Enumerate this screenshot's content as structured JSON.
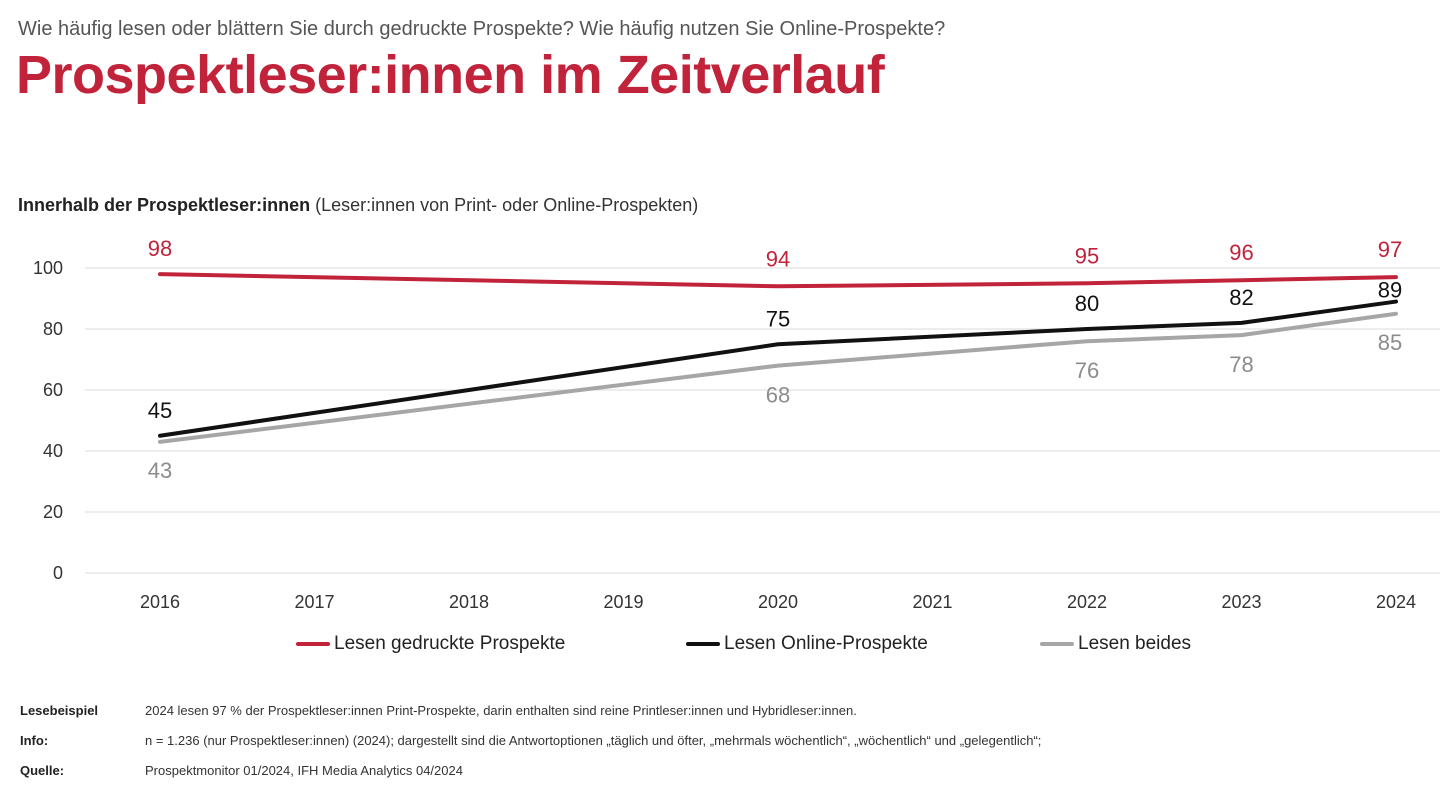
{
  "header": {
    "question": "Wie häufig lesen oder blättern Sie durch gedruckte Prospekte? Wie häufig nutzen Sie Online-Prospekte?",
    "title": "Prospektleser:innen im Zeitverlauf",
    "subtitle_bold": "Innerhalb der Prospektleser:innen",
    "subtitle_rest": " (Leser:innen von Print- oder Online-Prospekten)"
  },
  "chart_data": {
    "type": "line",
    "x": [
      "2016",
      "2017",
      "2018",
      "2019",
      "2020",
      "2021",
      "2022",
      "2023",
      "2024"
    ],
    "ylim": [
      0,
      100
    ],
    "yticks": [
      0,
      20,
      40,
      60,
      80,
      100
    ],
    "grid": true,
    "legend_position": "bottom",
    "series": [
      {
        "name": "Lesen gedruckte Prospekte",
        "color": "#c0233a",
        "points": [
          {
            "x": "2016",
            "y": 98
          },
          {
            "x": "2020",
            "y": 94
          },
          {
            "x": "2022",
            "y": 95
          },
          {
            "x": "2023",
            "y": 96
          },
          {
            "x": "2024",
            "y": 97
          }
        ]
      },
      {
        "name": "Lesen Online-Prospekte",
        "color": "#111111",
        "points": [
          {
            "x": "2016",
            "y": 45
          },
          {
            "x": "2020",
            "y": 75
          },
          {
            "x": "2022",
            "y": 80
          },
          {
            "x": "2023",
            "y": 82
          },
          {
            "x": "2024",
            "y": 89
          }
        ]
      },
      {
        "name": "Lesen beides",
        "color": "#a6a6a6",
        "points": [
          {
            "x": "2016",
            "y": 43
          },
          {
            "x": "2020",
            "y": 68
          },
          {
            "x": "2022",
            "y": 76
          },
          {
            "x": "2023",
            "y": 78
          },
          {
            "x": "2024",
            "y": 85
          }
        ]
      }
    ]
  },
  "notes": [
    {
      "key": "Lesebeispiel",
      "value": "2024 lesen 97 % der Prospektleser:innen Print-Prospekte, darin enthalten sind reine Printleser:innen und Hybridleser:innen."
    },
    {
      "key": "Info:",
      "value": "n = 1.236 (nur Prospektleser:innen) (2024); dargestellt sind die Antwortoptionen „täglich und öfter, „mehrmals wöchentlich“, „wöchentlich“ und „gelegentlich“;"
    },
    {
      "key": "Quelle:",
      "value": "Prospektmonitor 01/2024, IFH Media Analytics 04/2024"
    }
  ]
}
